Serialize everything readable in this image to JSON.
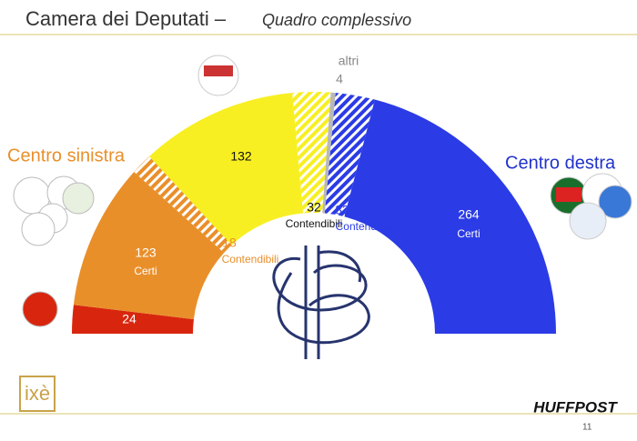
{
  "chart_data": {
    "type": "parliament",
    "title": "Camera dei Deputati –",
    "subtitle": "Quadro complessivo",
    "values": [
      24,
      123,
      18,
      132,
      32,
      4,
      33,
      264
    ],
    "categories": [
      null,
      "Certi",
      "Contendibili",
      null,
      "Contendibili",
      "altri",
      "Contendibili",
      "Certi"
    ],
    "colors": [
      "#d8260e",
      "#e98f2a",
      "#e98f2a",
      "#f8ef22",
      "#f8ef22",
      "#b9b9b9",
      "#2b3be5",
      "#2b3be5"
    ],
    "hatched": [
      false,
      false,
      true,
      false,
      true,
      false,
      true,
      false
    ],
    "groups": [
      {
        "label": "Centro sinistra",
        "color": "#e98f2a"
      },
      {
        "label": "Centro destra",
        "color": "#2233cc"
      }
    ]
  },
  "footer": {
    "left_logo": "ixè",
    "right_logo": "HUFFPOST",
    "page_number": "11"
  }
}
